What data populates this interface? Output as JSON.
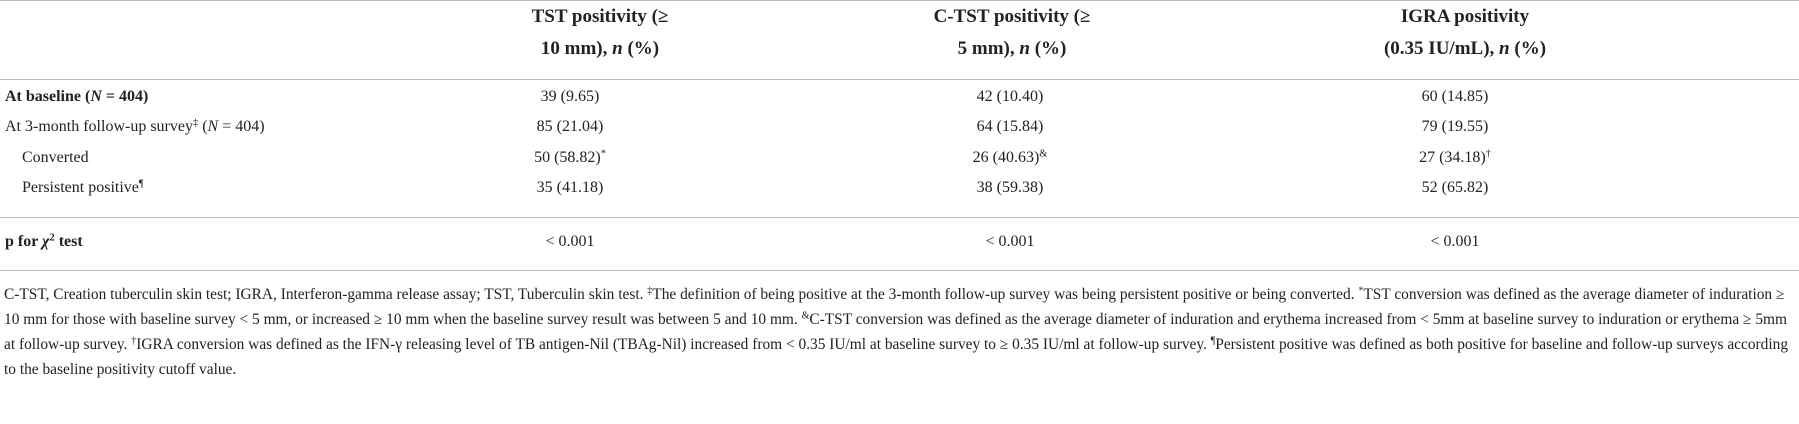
{
  "table": {
    "header": [
      [
        [
          {
            "text": "TST positivity (≥"
          }
        ],
        [
          {
            "text": "10 mm), "
          },
          {
            "italic": "n"
          },
          {
            "text": " (%)"
          }
        ]
      ],
      [
        [
          {
            "text": "C-TST positivity (≥"
          }
        ],
        [
          {
            "text": "5 mm), "
          },
          {
            "italic": "n"
          },
          {
            "text": " (%)"
          }
        ]
      ],
      [
        [
          {
            "text": "IGRA positivity"
          }
        ],
        [
          {
            "text": "(0.35 IU/mL), "
          },
          {
            "italic": "n"
          },
          {
            "text": " (%)"
          }
        ]
      ]
    ],
    "rows": [
      {
        "bold": true,
        "indent": false,
        "label": [
          {
            "text": "At baseline ("
          },
          {
            "italic": "N"
          },
          {
            "text": " = 404)"
          }
        ],
        "cells": [
          [
            {
              "text": "39 (9.65)"
            }
          ],
          [
            {
              "text": "42 (10.40)"
            }
          ],
          [
            {
              "text": "60 (14.85)"
            }
          ]
        ]
      },
      {
        "bold": false,
        "indent": false,
        "label": [
          {
            "text": "At 3-month follow-up survey"
          },
          {
            "sup": "‡"
          },
          {
            "text": " ("
          },
          {
            "italic": "N"
          },
          {
            "text": " = 404)"
          }
        ],
        "cells": [
          [
            {
              "text": "85 (21.04)"
            }
          ],
          [
            {
              "text": "64 (15.84)"
            }
          ],
          [
            {
              "text": "79 (19.55)"
            }
          ]
        ]
      },
      {
        "bold": false,
        "indent": true,
        "label": [
          {
            "text": "Converted"
          }
        ],
        "cells": [
          [
            {
              "text": "50 (58.82)"
            },
            {
              "sup": "*"
            }
          ],
          [
            {
              "text": "26 (40.63)"
            },
            {
              "sup": "&"
            }
          ],
          [
            {
              "text": "27 (34.18)"
            },
            {
              "sup": "†"
            }
          ]
        ]
      },
      {
        "bold": false,
        "indent": true,
        "label": [
          {
            "text": "Persistent positive"
          },
          {
            "sup": "¶"
          }
        ],
        "cells": [
          [
            {
              "text": "35 (41.18)"
            }
          ],
          [
            {
              "text": "38 (59.38)"
            }
          ],
          [
            {
              "text": "52 (65.82)"
            }
          ]
        ]
      },
      {
        "bold": true,
        "indent": false,
        "label": [
          {
            "text": "p for "
          },
          {
            "italic": "χ"
          },
          {
            "sup": "2"
          },
          {
            "text": " test"
          }
        ],
        "cells": [
          [
            {
              "text": "< 0.001"
            }
          ],
          [
            {
              "text": "< 0.001"
            }
          ],
          [
            {
              "text": "< 0.001"
            }
          ]
        ]
      }
    ],
    "footnote": [
      {
        "text": "C-TST, Creation tuberculin skin test; IGRA, Interferon-gamma release assay; TST, Tuberculin skin test. "
      },
      {
        "sup": "‡"
      },
      {
        "text": "The definition of being positive at the 3-month follow-up survey was being persistent positive or being converted. "
      },
      {
        "sup": "*"
      },
      {
        "text": "TST conversion was defined as the average diameter of induration ≥ 10 mm for those with baseline survey < 5 mm, or increased ≥ 10 mm when the baseline survey result was between 5 and 10 mm. "
      },
      {
        "sup": "&"
      },
      {
        "text": "C-TST conversion was defined as the average diameter of induration and erythema increased from < 5mm at baseline survey to induration or erythema ≥ 5mm at follow-up survey. "
      },
      {
        "sup": "†"
      },
      {
        "text": "IGRA conversion was defined as the IFN-γ releasing level of TB antigen-Nil (TBAg-Nil) increased from < 0.35 IU/ml at baseline survey to ≥ 0.35 IU/ml at follow-up survey. "
      },
      {
        "sup": "¶"
      },
      {
        "text": "Persistent positive was defined as both positive for baseline and follow-up surveys according to the baseline positivity cutoff value."
      }
    ]
  }
}
